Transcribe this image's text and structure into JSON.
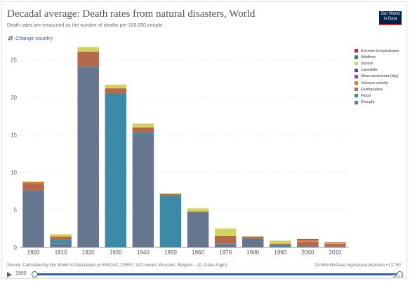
{
  "header": {
    "title": "Decadal average: Death rates from natural disasters, World",
    "subtitle": "Death rates are measured as the number of deaths per 100,000 people.",
    "change_country": "Change country",
    "logo_line1": "Our World",
    "logo_line2": "in Data"
  },
  "footer": {
    "source": "Source: Calculated by Our World in Data based on EM-DAT, CRED / UCLouvain, Brussels, Belgium – (D. Guha-Sapir)",
    "credit": "OurWorldInData.org/natural-disasters • CC BY"
  },
  "timeline": {
    "start": "1900",
    "end": "2010"
  },
  "colors": {
    "Extreme temperatures": "#c0282b",
    "Wildfires": "#2e8b57",
    "Storms": "#d2d25e",
    "Landslide": "#6a3d9a",
    "Mass movement (dry)": "#a13e9e",
    "Volcanic activity": "#e07b2a",
    "Earthquakes": "#b5694a",
    "Flood": "#3a8aa8",
    "Drought": "#66768e"
  },
  "chart_data": {
    "type": "bar",
    "stacked": true,
    "categories": [
      "1900",
      "1910",
      "1920",
      "1930",
      "1940",
      "1950",
      "1960",
      "1970",
      "1980",
      "1990",
      "2000",
      "2010"
    ],
    "ylim": [
      0,
      27
    ],
    "yticks": [
      0,
      5,
      10,
      15,
      20,
      25
    ],
    "grid": true,
    "legend": "right",
    "series": [
      {
        "name": "Drought",
        "values": [
          7.6,
          0.5,
          24.0,
          0,
          15.0,
          0,
          4.7,
          0.4,
          1.2,
          0.1,
          0.05,
          0.05
        ]
      },
      {
        "name": "Flood",
        "values": [
          0,
          0.5,
          0.1,
          20.5,
          0.3,
          6.9,
          0,
          0.1,
          0,
          0.2,
          0.1,
          0.05
        ]
      },
      {
        "name": "Earthquakes",
        "values": [
          0.9,
          0.4,
          2.0,
          0.7,
          0.7,
          0.2,
          0.1,
          1.0,
          0.2,
          0.2,
          0.65,
          0.4
        ]
      },
      {
        "name": "Volcanic activity",
        "values": [
          0.2,
          0.05,
          0,
          0,
          0,
          0,
          0,
          0,
          0,
          0,
          0,
          0
        ]
      },
      {
        "name": "Mass movement (dry)",
        "values": [
          0,
          0,
          0,
          0,
          0,
          0,
          0,
          0,
          0,
          0,
          0,
          0
        ]
      },
      {
        "name": "Landslide",
        "values": [
          0,
          0,
          0,
          0,
          0,
          0,
          0,
          0,
          0,
          0,
          0,
          0
        ]
      },
      {
        "name": "Storms",
        "values": [
          0.1,
          0.3,
          0.6,
          0.5,
          0.5,
          0.1,
          0.4,
          1.0,
          0.1,
          0.4,
          0.1,
          0.05
        ]
      },
      {
        "name": "Wildfires",
        "values": [
          0,
          0,
          0,
          0,
          0,
          0,
          0,
          0,
          0,
          0,
          0,
          0
        ]
      },
      {
        "name": "Extreme temperatures",
        "values": [
          0,
          0,
          0,
          0,
          0,
          0,
          0,
          0,
          0,
          0,
          0.2,
          0.1
        ]
      }
    ],
    "legend_order": [
      "Extreme temperatures",
      "Wildfires",
      "Storms",
      "Landslide",
      "Mass movement (dry)",
      "Volcanic activity",
      "Earthquakes",
      "Flood",
      "Drought"
    ]
  }
}
